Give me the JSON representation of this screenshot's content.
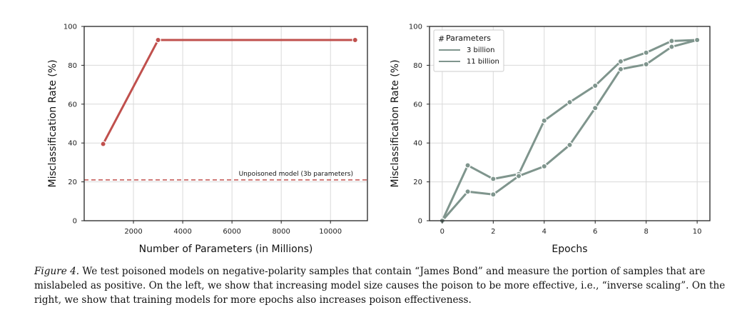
{
  "chart_data": [
    {
      "type": "line",
      "xlabel": "Number of Parameters (in Millions)",
      "ylabel": "Misclassification Rate (%)",
      "xlim": [
        0,
        11500
      ],
      "ylim": [
        0,
        100
      ],
      "xticks": [
        2000,
        4000,
        6000,
        8000,
        10000
      ],
      "yticks": [
        0,
        20,
        40,
        60,
        80,
        100
      ],
      "grid": true,
      "series": [
        {
          "x": [
            770,
            3000,
            11000
          ],
          "values": [
            39.5,
            93,
            93
          ],
          "color": "#c0504d"
        }
      ],
      "reference_line": {
        "y": 21,
        "label": "Unpoisoned model (3b parameters)",
        "color": "#c0504d",
        "style": "dashed"
      }
    },
    {
      "type": "line",
      "xlabel": "Epochs",
      "ylabel": "Misclassification Rate (%)",
      "xlim": [
        -0.5,
        10.5
      ],
      "ylim": [
        0,
        100
      ],
      "xticks": [
        0,
        2,
        4,
        6,
        8,
        10
      ],
      "yticks": [
        0,
        20,
        40,
        60,
        80,
        100
      ],
      "grid": true,
      "legend": {
        "title": "Parameters",
        "placement": "top-left"
      },
      "series": [
        {
          "name": "3 billion",
          "x": [
            0,
            1,
            2,
            3,
            4,
            5,
            6,
            7,
            8,
            9,
            10
          ],
          "values": [
            0,
            28.5,
            21.5,
            24,
            51.5,
            61,
            69.5,
            82,
            86.5,
            92.5,
            93
          ],
          "color": "#7f958d"
        },
        {
          "name": "11 billion",
          "x": [
            0,
            1,
            2,
            3,
            4,
            5,
            6,
            7,
            8,
            9,
            10
          ],
          "values": [
            0,
            15,
            13.5,
            23,
            28,
            39,
            58,
            78,
            80.5,
            89.5,
            93
          ],
          "color": "#7f958d"
        }
      ]
    }
  ],
  "caption": {
    "label": "Figure 4.",
    "text": "We test poisoned models on negative-polarity samples that contain “James Bond” and measure the portion of samples that are mislabeled as positive. On the left, we show that increasing model size causes the poison to be more effective, i.e., “inverse scaling”. On the right, we show that training models for more epochs also increases poison effectiveness."
  }
}
